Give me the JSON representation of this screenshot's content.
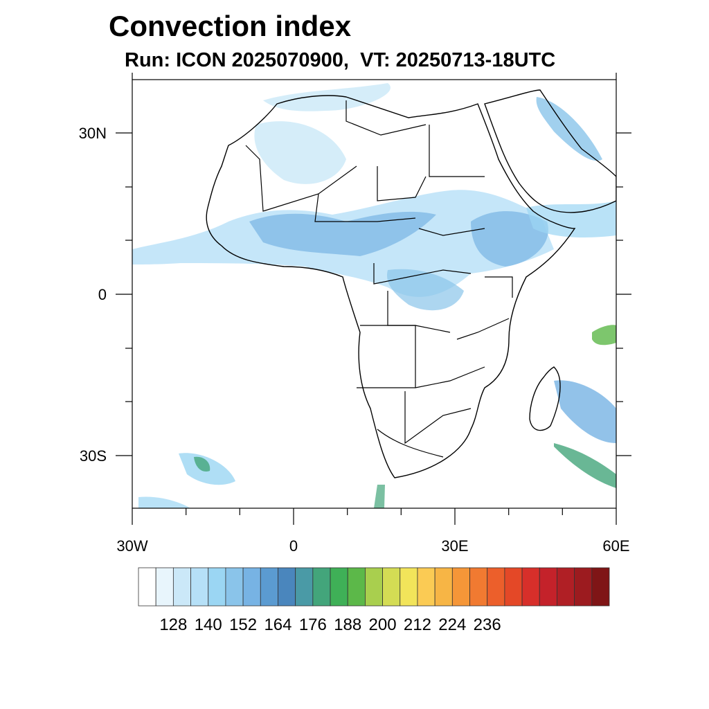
{
  "title": "Convection index",
  "subtitle": "Run: ICON 2025070900,  VT: 20250713-18UTC",
  "map": {
    "region": "Africa",
    "lon_range": [
      -30,
      60
    ],
    "lat_range": [
      -40,
      40
    ],
    "lat_ticks": [
      {
        "value": 30,
        "label": "30N"
      },
      {
        "value": 0,
        "label": "0"
      },
      {
        "value": -30,
        "label": "30S"
      }
    ],
    "lon_ticks": [
      {
        "value": -30,
        "label": "30W"
      },
      {
        "value": 0,
        "label": "0"
      },
      {
        "value": 30,
        "label": "30E"
      },
      {
        "value": 60,
        "label": "60E"
      }
    ]
  },
  "colorbar": {
    "colors": [
      "#ffffff",
      "#e8f5fc",
      "#cbe8f8",
      "#b6e0f7",
      "#9bd6f3",
      "#8ac4ea",
      "#77b3e4",
      "#5b9bd1",
      "#4a86bd",
      "#4a9aa6",
      "#43a57b",
      "#3fb057",
      "#5cb849",
      "#a9cf4e",
      "#d4dc54",
      "#f2e45a",
      "#fbcb54",
      "#f7b545",
      "#f59638",
      "#f17a31",
      "#ec5f2b",
      "#e44827",
      "#d72f2a",
      "#c4222a",
      "#b01f25",
      "#9c1b1f",
      "#7f1516"
    ],
    "labels": [
      "128",
      "140",
      "152",
      "164",
      "176",
      "188",
      "200",
      "212",
      "224",
      "236"
    ]
  }
}
